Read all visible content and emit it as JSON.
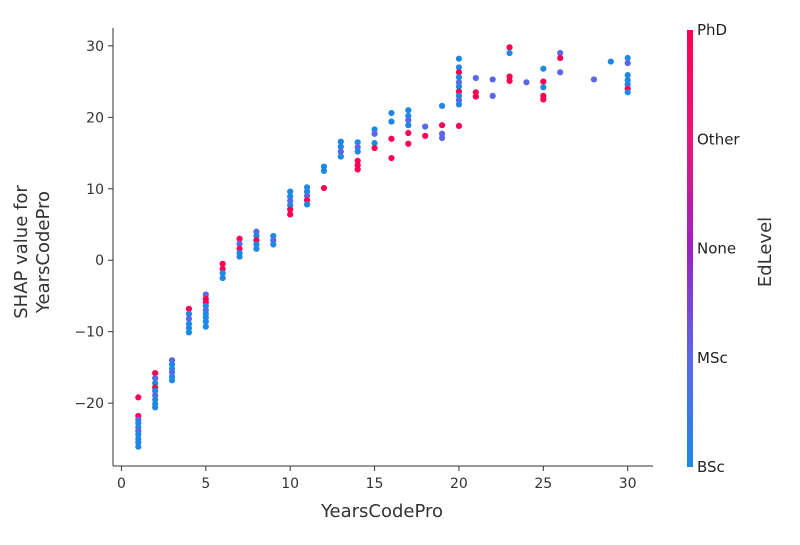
{
  "chart_data": {
    "type": "scatter",
    "title": "",
    "xlabel": "YearsCodePro",
    "ylabel_lines": [
      "SHAP value for",
      "YearsCodePro"
    ],
    "xlim": [
      -0.5,
      31.5
    ],
    "ylim": [
      -28.8,
      32.5
    ],
    "xticks": [
      0,
      5,
      10,
      15,
      20,
      25,
      30
    ],
    "yticks": [
      -20,
      -10,
      0,
      10,
      20,
      30
    ],
    "grid": false,
    "colorbar": {
      "label": "EdLevel",
      "categories": [
        "BSc",
        "MSc",
        "None",
        "Other",
        "PhD"
      ],
      "colors": [
        "#1e88e5",
        "#5b67ea",
        "#9b22c0",
        "#e8157a",
        "#ff0052"
      ]
    },
    "points": [
      {
        "x": 1,
        "y": -19.2,
        "c": 4
      },
      {
        "x": 1,
        "y": -21.8,
        "c": 4
      },
      {
        "x": 1,
        "y": -22.3,
        "c": 1
      },
      {
        "x": 1,
        "y": -22.8,
        "c": 0
      },
      {
        "x": 1,
        "y": -23.4,
        "c": 0
      },
      {
        "x": 1,
        "y": -23.9,
        "c": 1
      },
      {
        "x": 1,
        "y": -24.4,
        "c": 0
      },
      {
        "x": 1,
        "y": -25.0,
        "c": 0
      },
      {
        "x": 1,
        "y": -25.5,
        "c": 0
      },
      {
        "x": 1,
        "y": -26.1,
        "c": 0
      },
      {
        "x": 2,
        "y": -15.8,
        "c": 4
      },
      {
        "x": 2,
        "y": -16.5,
        "c": 1
      },
      {
        "x": 2,
        "y": -17.2,
        "c": 0
      },
      {
        "x": 2,
        "y": -17.8,
        "c": 4
      },
      {
        "x": 2,
        "y": -18.3,
        "c": 0
      },
      {
        "x": 2,
        "y": -18.9,
        "c": 1
      },
      {
        "x": 2,
        "y": -19.5,
        "c": 0
      },
      {
        "x": 2,
        "y": -20.1,
        "c": 0
      },
      {
        "x": 2,
        "y": -20.6,
        "c": 0
      },
      {
        "x": 3,
        "y": -14.0,
        "c": 1
      },
      {
        "x": 3,
        "y": -14.6,
        "c": 0
      },
      {
        "x": 3,
        "y": -15.2,
        "c": 0
      },
      {
        "x": 3,
        "y": -15.7,
        "c": 1
      },
      {
        "x": 3,
        "y": -16.3,
        "c": 0
      },
      {
        "x": 3,
        "y": -16.8,
        "c": 0
      },
      {
        "x": 4,
        "y": -6.8,
        "c": 4
      },
      {
        "x": 4,
        "y": -7.5,
        "c": 0
      },
      {
        "x": 4,
        "y": -8.2,
        "c": 1
      },
      {
        "x": 4,
        "y": -8.9,
        "c": 0
      },
      {
        "x": 4,
        "y": -9.5,
        "c": 0
      },
      {
        "x": 4,
        "y": -10.1,
        "c": 0
      },
      {
        "x": 5,
        "y": -4.8,
        "c": 1
      },
      {
        "x": 5,
        "y": -5.4,
        "c": 4
      },
      {
        "x": 5,
        "y": -5.9,
        "c": 4
      },
      {
        "x": 5,
        "y": -6.4,
        "c": 0
      },
      {
        "x": 5,
        "y": -7.0,
        "c": 1
      },
      {
        "x": 5,
        "y": -7.5,
        "c": 0
      },
      {
        "x": 5,
        "y": -8.0,
        "c": 0
      },
      {
        "x": 5,
        "y": -8.6,
        "c": 0
      },
      {
        "x": 5,
        "y": -9.3,
        "c": 0
      },
      {
        "x": 6,
        "y": -0.5,
        "c": 4
      },
      {
        "x": 6,
        "y": -1.2,
        "c": 4
      },
      {
        "x": 6,
        "y": -1.8,
        "c": 0
      },
      {
        "x": 6,
        "y": -2.5,
        "c": 0
      },
      {
        "x": 7,
        "y": 3.0,
        "c": 4
      },
      {
        "x": 7,
        "y": 2.3,
        "c": 1
      },
      {
        "x": 7,
        "y": 1.6,
        "c": 4
      },
      {
        "x": 7,
        "y": 1.0,
        "c": 0
      },
      {
        "x": 7,
        "y": 0.5,
        "c": 0
      },
      {
        "x": 8,
        "y": 4.0,
        "c": 1
      },
      {
        "x": 8,
        "y": 3.4,
        "c": 0
      },
      {
        "x": 8,
        "y": 2.8,
        "c": 4
      },
      {
        "x": 8,
        "y": 2.2,
        "c": 0
      },
      {
        "x": 8,
        "y": 1.6,
        "c": 0
      },
      {
        "x": 9,
        "y": 3.4,
        "c": 0
      },
      {
        "x": 9,
        "y": 2.8,
        "c": 1
      },
      {
        "x": 9,
        "y": 2.2,
        "c": 0
      },
      {
        "x": 10,
        "y": 9.6,
        "c": 0
      },
      {
        "x": 10,
        "y": 8.9,
        "c": 0
      },
      {
        "x": 10,
        "y": 8.3,
        "c": 1
      },
      {
        "x": 10,
        "y": 7.7,
        "c": 0
      },
      {
        "x": 10,
        "y": 7.1,
        "c": 4
      },
      {
        "x": 10,
        "y": 6.4,
        "c": 4
      },
      {
        "x": 11,
        "y": 10.2,
        "c": 0
      },
      {
        "x": 11,
        "y": 9.6,
        "c": 0
      },
      {
        "x": 11,
        "y": 9.0,
        "c": 1
      },
      {
        "x": 11,
        "y": 8.4,
        "c": 4
      },
      {
        "x": 11,
        "y": 7.8,
        "c": 0
      },
      {
        "x": 12,
        "y": 13.1,
        "c": 0
      },
      {
        "x": 12,
        "y": 12.5,
        "c": 0
      },
      {
        "x": 12,
        "y": 10.1,
        "c": 4
      },
      {
        "x": 13,
        "y": 16.6,
        "c": 0
      },
      {
        "x": 13,
        "y": 15.9,
        "c": 0
      },
      {
        "x": 13,
        "y": 15.2,
        "c": 1
      },
      {
        "x": 13,
        "y": 14.5,
        "c": 0
      },
      {
        "x": 14,
        "y": 16.5,
        "c": 0
      },
      {
        "x": 14,
        "y": 15.8,
        "c": 1
      },
      {
        "x": 14,
        "y": 15.2,
        "c": 0
      },
      {
        "x": 14,
        "y": 13.9,
        "c": 4
      },
      {
        "x": 14,
        "y": 13.3,
        "c": 4
      },
      {
        "x": 14,
        "y": 12.7,
        "c": 4
      },
      {
        "x": 15,
        "y": 18.3,
        "c": 0
      },
      {
        "x": 15,
        "y": 17.7,
        "c": 1
      },
      {
        "x": 15,
        "y": 16.4,
        "c": 0
      },
      {
        "x": 15,
        "y": 15.7,
        "c": 4
      },
      {
        "x": 16,
        "y": 20.6,
        "c": 0
      },
      {
        "x": 16,
        "y": 19.4,
        "c": 0
      },
      {
        "x": 16,
        "y": 17.0,
        "c": 4
      },
      {
        "x": 16,
        "y": 14.3,
        "c": 4
      },
      {
        "x": 17,
        "y": 21.0,
        "c": 0
      },
      {
        "x": 17,
        "y": 20.2,
        "c": 0
      },
      {
        "x": 17,
        "y": 19.6,
        "c": 1
      },
      {
        "x": 17,
        "y": 18.9,
        "c": 0
      },
      {
        "x": 17,
        "y": 17.8,
        "c": 4
      },
      {
        "x": 17,
        "y": 16.3,
        "c": 4
      },
      {
        "x": 18,
        "y": 18.7,
        "c": 1
      },
      {
        "x": 18,
        "y": 17.4,
        "c": 4
      },
      {
        "x": 19,
        "y": 21.6,
        "c": 0
      },
      {
        "x": 19,
        "y": 18.9,
        "c": 4
      },
      {
        "x": 19,
        "y": 17.7,
        "c": 1
      },
      {
        "x": 19,
        "y": 17.1,
        "c": 1
      },
      {
        "x": 20,
        "y": 28.2,
        "c": 0
      },
      {
        "x": 20,
        "y": 27.0,
        "c": 0
      },
      {
        "x": 20,
        "y": 26.3,
        "c": 4
      },
      {
        "x": 20,
        "y": 25.6,
        "c": 0
      },
      {
        "x": 20,
        "y": 24.9,
        "c": 1
      },
      {
        "x": 20,
        "y": 24.3,
        "c": 0
      },
      {
        "x": 20,
        "y": 23.6,
        "c": 4
      },
      {
        "x": 20,
        "y": 23.0,
        "c": 0
      },
      {
        "x": 20,
        "y": 22.4,
        "c": 1
      },
      {
        "x": 20,
        "y": 21.8,
        "c": 0
      },
      {
        "x": 20,
        "y": 18.8,
        "c": 4
      },
      {
        "x": 21,
        "y": 25.5,
        "c": 1
      },
      {
        "x": 21,
        "y": 23.5,
        "c": 4
      },
      {
        "x": 21,
        "y": 22.9,
        "c": 4
      },
      {
        "x": 22,
        "y": 25.3,
        "c": 1
      },
      {
        "x": 22,
        "y": 23.0,
        "c": 1
      },
      {
        "x": 23,
        "y": 29.8,
        "c": 4
      },
      {
        "x": 23,
        "y": 29.0,
        "c": 0
      },
      {
        "x": 23,
        "y": 25.7,
        "c": 4
      },
      {
        "x": 23,
        "y": 25.1,
        "c": 4
      },
      {
        "x": 24,
        "y": 24.9,
        "c": 1
      },
      {
        "x": 25,
        "y": 26.8,
        "c": 0
      },
      {
        "x": 25,
        "y": 25.0,
        "c": 4
      },
      {
        "x": 25,
        "y": 24.2,
        "c": 0
      },
      {
        "x": 25,
        "y": 23.0,
        "c": 4
      },
      {
        "x": 25,
        "y": 22.5,
        "c": 4
      },
      {
        "x": 26,
        "y": 29.0,
        "c": 1
      },
      {
        "x": 26,
        "y": 28.3,
        "c": 4
      },
      {
        "x": 26,
        "y": 26.3,
        "c": 1
      },
      {
        "x": 28,
        "y": 25.3,
        "c": 1
      },
      {
        "x": 29,
        "y": 27.8,
        "c": 0
      },
      {
        "x": 30,
        "y": 28.3,
        "c": 0
      },
      {
        "x": 30,
        "y": 27.6,
        "c": 1
      },
      {
        "x": 30,
        "y": 25.9,
        "c": 0
      },
      {
        "x": 30,
        "y": 25.2,
        "c": 0
      },
      {
        "x": 30,
        "y": 24.6,
        "c": 0
      },
      {
        "x": 30,
        "y": 24.0,
        "c": 4
      },
      {
        "x": 30,
        "y": 23.5,
        "c": 0
      }
    ]
  }
}
